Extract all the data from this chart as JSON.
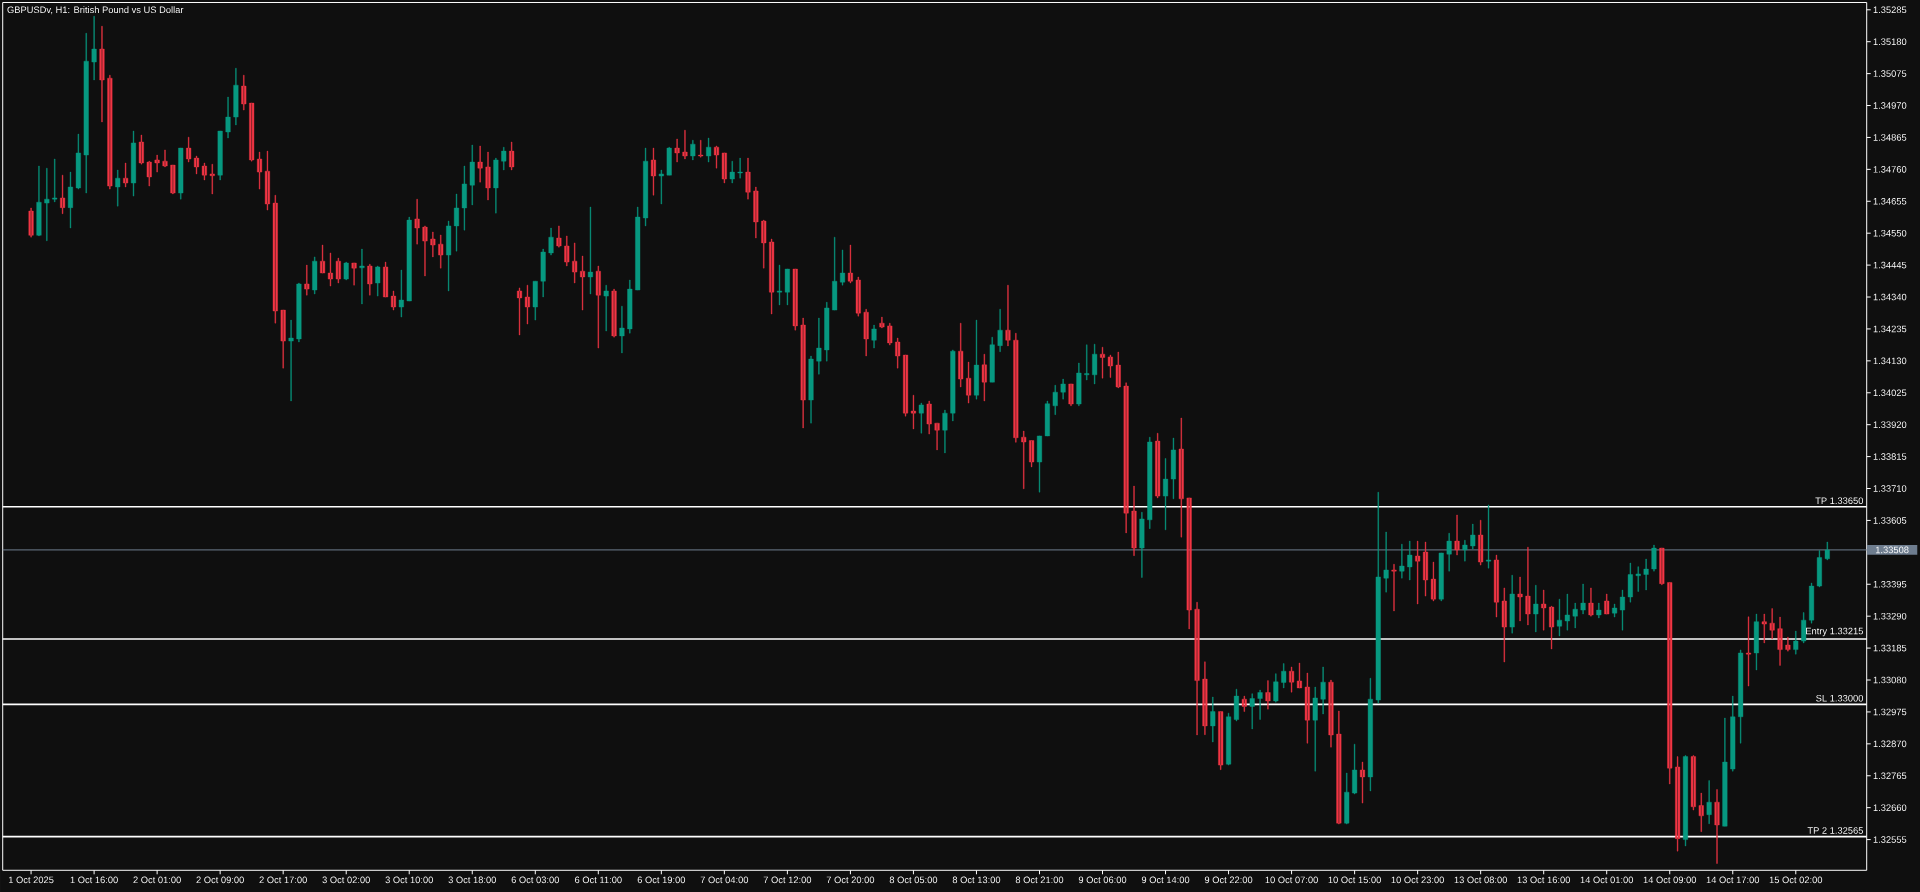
{
  "chart_data": {
    "type": "candlestick",
    "title": "GBPUSDv, H1:  British Pound vs US Dollar",
    "categories": [
      "1 Oct 2025",
      null,
      null,
      null,
      null,
      null,
      null,
      null,
      "1 Oct 16:00",
      null,
      null,
      null,
      null,
      null,
      null,
      null,
      "2 Oct 01:00",
      null,
      null,
      null,
      null,
      null,
      null,
      null,
      "2 Oct 09:00",
      null,
      null,
      null,
      null,
      null,
      null,
      null,
      "2 Oct 17:00",
      null,
      null,
      null,
      null,
      null,
      null,
      null,
      "3 Oct 02:00",
      null,
      null,
      null,
      null,
      null,
      null,
      null,
      "3 Oct 10:00",
      null,
      null,
      null,
      null,
      null,
      null,
      null,
      "3 Oct 18:00",
      null,
      null,
      null,
      null,
      null,
      null,
      null,
      "6 Oct 03:00",
      null,
      null,
      null,
      null,
      null,
      null,
      null,
      "6 Oct 11:00",
      null,
      null,
      null,
      null,
      null,
      null,
      null,
      "6 Oct 19:00",
      null,
      null,
      null,
      null,
      null,
      null,
      null,
      "7 Oct 04:00",
      null,
      null,
      null,
      null,
      null,
      null,
      null,
      "7 Oct 12:00",
      null,
      null,
      null,
      null,
      null,
      null,
      null,
      "7 Oct 20:00",
      null,
      null,
      null,
      null,
      null,
      null,
      null,
      "8 Oct 05:00",
      null,
      null,
      null,
      null,
      null,
      null,
      null,
      "8 Oct 13:00",
      null,
      null,
      null,
      null,
      null,
      null,
      null,
      "8 Oct 21:00",
      null,
      null,
      null,
      null,
      null,
      null,
      null,
      "9 Oct 06:00",
      null,
      null,
      null,
      null,
      null,
      null,
      null,
      "9 Oct 14:00",
      null,
      null,
      null,
      null,
      null,
      null,
      null,
      "9 Oct 22:00",
      null,
      null,
      null,
      null,
      null,
      null,
      null,
      "10 Oct 07:00",
      null,
      null,
      null,
      null,
      null,
      null,
      null,
      "10 Oct 15:00",
      null,
      null,
      null,
      null,
      null,
      null,
      null,
      "10 Oct 23:00",
      null,
      null,
      null,
      null,
      null,
      null,
      null,
      "13 Oct 08:00",
      null,
      null,
      null,
      null,
      null,
      null,
      null,
      "13 Oct 16:00",
      null,
      null,
      null,
      null,
      null,
      null,
      null,
      "14 Oct 01:00",
      null,
      null,
      null,
      null,
      null,
      null,
      null,
      "14 Oct 09:00",
      null,
      null,
      null,
      null,
      null,
      null,
      null,
      "14 Oct 17:00",
      null,
      null,
      null,
      null,
      null,
      null,
      null,
      "15 Oct 02:00",
      null,
      null,
      null,
      null
    ],
    "ohlc": [
      [
        1.34623,
        1.34633,
        1.34537,
        1.34543
      ],
      [
        1.34543,
        1.34771,
        1.34541,
        1.34652
      ],
      [
        1.34649,
        1.34764,
        1.34525,
        1.34662
      ],
      [
        1.34662,
        1.34794,
        1.34653,
        1.34666
      ],
      [
        1.34666,
        1.34741,
        1.34614,
        1.34634
      ],
      [
        1.34634,
        1.34751,
        1.34567,
        1.34702
      ],
      [
        1.34699,
        1.34876,
        1.34695,
        1.34814
      ],
      [
        1.34807,
        1.35208,
        1.34682,
        1.35116
      ],
      [
        1.35113,
        1.35264,
        1.35054,
        1.35156
      ],
      [
        1.35156,
        1.35231,
        1.34916,
        1.35054
      ],
      [
        1.3506,
        1.3507,
        1.34695,
        1.34705
      ],
      [
        1.34702,
        1.34758,
        1.34639,
        1.34731
      ],
      [
        1.34731,
        1.34781,
        1.34702,
        1.34715
      ],
      [
        1.34715,
        1.34886,
        1.34672,
        1.34847
      ],
      [
        1.3485,
        1.34873,
        1.34777,
        1.34781
      ],
      [
        1.34784,
        1.34787,
        1.34705,
        1.34735
      ],
      [
        1.34791,
        1.34807,
        1.34751,
        1.34781
      ],
      [
        1.34787,
        1.34824,
        1.34768,
        1.34771
      ],
      [
        1.34774,
        1.34774,
        1.34679,
        1.34682
      ],
      [
        1.34682,
        1.3483,
        1.34662,
        1.3483
      ],
      [
        1.3483,
        1.34866,
        1.34784,
        1.34794
      ],
      [
        1.34797,
        1.34804,
        1.34745,
        1.34768
      ],
      [
        1.34771,
        1.34781,
        1.34725,
        1.34741
      ],
      [
        1.34745,
        1.34777,
        1.34679,
        1.34739
      ],
      [
        1.34741,
        1.34886,
        1.34725,
        1.34886
      ],
      [
        1.34883,
        1.34998,
        1.34863,
        1.34932
      ],
      [
        1.34932,
        1.35093,
        1.34906,
        1.35037
      ],
      [
        1.35034,
        1.3507,
        1.34955,
        1.34975
      ],
      [
        1.34978,
        1.34978,
        1.34787,
        1.34791
      ],
      [
        1.34794,
        1.34817,
        1.34695,
        1.34751
      ],
      [
        1.34754,
        1.3482,
        1.34626,
        1.34646
      ],
      [
        1.34649,
        1.34675,
        1.34254,
        1.34294
      ],
      [
        1.34297,
        1.34297,
        1.34106,
        1.34195
      ],
      [
        1.34195,
        1.34264,
        1.33998,
        1.34205
      ],
      [
        1.34202,
        1.34386,
        1.34192,
        1.34383
      ],
      [
        1.34383,
        1.34445,
        1.34346,
        1.34366
      ],
      [
        1.34363,
        1.34472,
        1.3435,
        1.34458
      ],
      [
        1.34458,
        1.34511,
        1.34419,
        1.34419
      ],
      [
        1.34419,
        1.34485,
        1.34376,
        1.34399
      ],
      [
        1.34458,
        1.34468,
        1.34386,
        1.34399
      ],
      [
        1.34399,
        1.34455,
        1.34396,
        1.34452
      ],
      [
        1.34452,
        1.34452,
        1.34379,
        1.34435
      ],
      [
        1.34436,
        1.34498,
        1.34317,
        1.34442
      ],
      [
        1.34442,
        1.34448,
        1.34346,
        1.34383
      ],
      [
        1.34386,
        1.34442,
        1.34343,
        1.34439
      ],
      [
        1.34439,
        1.34455,
        1.3434,
        1.3434
      ],
      [
        1.34343,
        1.3436,
        1.34297,
        1.34307
      ],
      [
        1.34307,
        1.34429,
        1.34274,
        1.3433
      ],
      [
        1.34327,
        1.34603,
        1.34327,
        1.34593
      ],
      [
        1.34597,
        1.34662,
        1.34514,
        1.34567
      ],
      [
        1.3457,
        1.34574,
        1.34409,
        1.34524
      ],
      [
        1.34531,
        1.34554,
        1.34472,
        1.34511
      ],
      [
        1.34514,
        1.34544,
        1.34435,
        1.34478
      ],
      [
        1.34478,
        1.3459,
        1.3436,
        1.34574
      ],
      [
        1.34574,
        1.34679,
        1.34491,
        1.34633
      ],
      [
        1.34633,
        1.34771,
        1.3456,
        1.34712
      ],
      [
        1.34708,
        1.3484,
        1.34643,
        1.34784
      ],
      [
        1.34784,
        1.34837,
        1.34718,
        1.34764
      ],
      [
        1.34768,
        1.34817,
        1.34659,
        1.34699
      ],
      [
        1.34699,
        1.34797,
        1.34616,
        1.34791
      ],
      [
        1.34787,
        1.34833,
        1.34758,
        1.3482
      ],
      [
        1.3482,
        1.3485,
        1.34758,
        1.34768
      ],
      [
        1.3436,
        1.3437,
        1.34215,
        1.34337
      ],
      [
        1.3434,
        1.34379,
        1.34251,
        1.34307
      ],
      [
        1.34307,
        1.34392,
        1.34264,
        1.34392
      ],
      [
        1.34392,
        1.34498,
        1.3434,
        1.34488
      ],
      [
        1.34485,
        1.34567,
        1.34478,
        1.34537
      ],
      [
        1.34534,
        1.34574,
        1.34504,
        1.34508
      ],
      [
        1.34508,
        1.34541,
        1.34442,
        1.34455
      ],
      [
        1.34458,
        1.34518,
        1.34386,
        1.34422
      ],
      [
        1.34425,
        1.34475,
        1.34297,
        1.34406
      ],
      [
        1.34406,
        1.34636,
        1.3435,
        1.34422
      ],
      [
        1.34425,
        1.34442,
        1.34172,
        1.34346
      ],
      [
        1.34343,
        1.34379,
        1.34228,
        1.3436
      ],
      [
        1.3436,
        1.34366,
        1.34208,
        1.34212
      ],
      [
        1.34212,
        1.3431,
        1.34156,
        1.34238
      ],
      [
        1.34235,
        1.34396,
        1.34221,
        1.34366
      ],
      [
        1.34363,
        1.34636,
        1.34363,
        1.34603
      ],
      [
        1.346,
        1.3483,
        1.34574,
        1.34787
      ],
      [
        1.34791,
        1.3483,
        1.34675,
        1.34738
      ],
      [
        1.34738,
        1.34758,
        1.34646,
        1.34745
      ],
      [
        1.34741,
        1.34833,
        1.34741,
        1.3483
      ],
      [
        1.3483,
        1.3486,
        1.34784,
        1.34814
      ],
      [
        1.34817,
        1.34889,
        1.34794,
        1.34804
      ],
      [
        1.34804,
        1.34856,
        1.34791,
        1.34843
      ],
      [
        1.34807,
        1.34856,
        1.348,
        1.34804
      ],
      [
        1.34804,
        1.34863,
        1.34784,
        1.34833
      ],
      [
        1.34833,
        1.34837,
        1.34764,
        1.34807
      ],
      [
        1.34814,
        1.34814,
        1.34715,
        1.34728
      ],
      [
        1.34728,
        1.34787,
        1.34715,
        1.34751
      ],
      [
        1.34748,
        1.34797,
        1.34731,
        1.34751
      ],
      [
        1.34751,
        1.34797,
        1.34662,
        1.34685
      ],
      [
        1.34689,
        1.34702,
        1.34534,
        1.34587
      ],
      [
        1.3459,
        1.34593,
        1.34435,
        1.34518
      ],
      [
        1.34521,
        1.34531,
        1.34284,
        1.34356
      ],
      [
        1.34356,
        1.34445,
        1.34314,
        1.3436
      ],
      [
        1.34356,
        1.34432,
        1.34314,
        1.34432
      ],
      [
        1.34432,
        1.34432,
        1.34231,
        1.34245
      ],
      [
        1.34248,
        1.34271,
        1.33909,
        1.34001
      ],
      [
        1.34001,
        1.34146,
        1.33925,
        1.34136
      ],
      [
        1.34129,
        1.34271,
        1.34086,
        1.34172
      ],
      [
        1.34166,
        1.34323,
        1.34129,
        1.34304
      ],
      [
        1.34297,
        1.34537,
        1.34297,
        1.34392
      ],
      [
        1.34389,
        1.34495,
        1.34379,
        1.34419
      ],
      [
        1.34419,
        1.34511,
        1.34386,
        1.34392
      ],
      [
        1.34396,
        1.34406,
        1.34277,
        1.34287
      ],
      [
        1.3429,
        1.343,
        1.34146,
        1.34202
      ],
      [
        1.34198,
        1.34248,
        1.34172,
        1.34235
      ],
      [
        1.34254,
        1.34274,
        1.34238,
        1.34241
      ],
      [
        1.34245,
        1.34254,
        1.34182,
        1.34189
      ],
      [
        1.34192,
        1.34205,
        1.34106,
        1.34146
      ],
      [
        1.34149,
        1.34149,
        1.33948,
        1.33958
      ],
      [
        1.33965,
        1.34017,
        1.33906,
        1.33958
      ],
      [
        1.33958,
        1.33991,
        1.33892,
        1.33985
      ],
      [
        1.33988,
        1.33998,
        1.33889,
        1.33922
      ],
      [
        1.33925,
        1.33925,
        1.33837,
        1.33902
      ],
      [
        1.33902,
        1.33968,
        1.33827,
        1.33958
      ],
      [
        1.33958,
        1.34166,
        1.33932,
        1.34162
      ],
      [
        1.34162,
        1.34254,
        1.34044,
        1.3407
      ],
      [
        1.34073,
        1.34126,
        1.33991,
        1.34017
      ],
      [
        1.34017,
        1.34264,
        1.34004,
        1.34116
      ],
      [
        1.34117,
        1.34152,
        1.33998,
        1.3406
      ],
      [
        1.3406,
        1.34208,
        1.3406,
        1.34183
      ],
      [
        1.3418,
        1.343,
        1.3416,
        1.34231
      ],
      [
        1.34231,
        1.34379,
        1.34179,
        1.34198
      ],
      [
        1.34198,
        1.34221,
        1.33862,
        1.33877
      ],
      [
        1.33879,
        1.33899,
        1.33709,
        1.33863
      ],
      [
        1.33868,
        1.33868,
        1.33781,
        1.33797
      ],
      [
        1.33797,
        1.33883,
        1.33698,
        1.33883
      ],
      [
        1.33883,
        1.33998,
        1.33883,
        1.33989
      ],
      [
        1.33982,
        1.3405,
        1.33953,
        1.34027
      ],
      [
        1.34027,
        1.3407,
        1.34004,
        1.34054
      ],
      [
        1.34054,
        1.34054,
        1.33982,
        1.33988
      ],
      [
        1.33988,
        1.34123,
        1.33982,
        1.3409
      ],
      [
        1.34084,
        1.34183,
        1.34067,
        1.34088
      ],
      [
        1.34084,
        1.34185,
        1.34054,
        1.34152
      ],
      [
        1.34152,
        1.34175,
        1.34073,
        1.34141
      ],
      [
        1.34143,
        1.34149,
        1.34075,
        1.34113
      ],
      [
        1.34116,
        1.34159,
        1.34041,
        1.34044
      ],
      [
        1.34047,
        1.34058,
        1.33564,
        1.33629
      ],
      [
        1.33636,
        1.33718,
        1.33489,
        1.33514
      ],
      [
        1.33514,
        1.33632,
        1.33417,
        1.3361
      ],
      [
        1.33607,
        1.33879,
        1.33578,
        1.33863
      ],
      [
        1.33866,
        1.33892,
        1.33679,
        1.33685
      ],
      [
        1.33685,
        1.33809,
        1.33574,
        1.33741
      ],
      [
        1.33741,
        1.33876,
        1.33676,
        1.33837
      ],
      [
        1.3384,
        1.33942,
        1.3355,
        1.33676
      ],
      [
        1.33679,
        1.33679,
        1.33248,
        1.3331
      ],
      [
        1.33313,
        1.33336,
        1.32899,
        1.33078
      ],
      [
        1.33083,
        1.3314,
        1.329,
        1.32929
      ],
      [
        1.32929,
        1.33024,
        1.32876,
        1.32976
      ],
      [
        1.32976,
        1.32976,
        1.32785,
        1.328
      ],
      [
        1.32803,
        1.32971,
        1.328,
        1.32959
      ],
      [
        1.3295,
        1.3305,
        1.32945,
        1.33027
      ],
      [
        1.33017,
        1.33027,
        1.32976,
        1.32993
      ],
      [
        1.32993,
        1.33035,
        1.32919,
        1.33019
      ],
      [
        1.33019,
        1.33047,
        1.3295,
        1.33039
      ],
      [
        1.33039,
        1.33078,
        1.32984,
        1.33011
      ],
      [
        1.33011,
        1.33101,
        1.33007,
        1.33074
      ],
      [
        1.33072,
        1.33134,
        1.33054,
        1.33109
      ],
      [
        1.33109,
        1.33123,
        1.3304,
        1.33073
      ],
      [
        1.33077,
        1.33136,
        1.33054,
        1.33054
      ],
      [
        1.33057,
        1.33103,
        1.32872,
        1.32948
      ],
      [
        1.32948,
        1.33057,
        1.3278,
        1.33021
      ],
      [
        1.33017,
        1.33123,
        1.32968,
        1.33073
      ],
      [
        1.33073,
        1.3308,
        1.32859,
        1.32899
      ],
      [
        1.32902,
        1.32978,
        1.32606,
        1.32609
      ],
      [
        1.32609,
        1.32774,
        1.32606,
        1.32711
      ],
      [
        1.32708,
        1.32869,
        1.32705,
        1.32784
      ],
      [
        1.32784,
        1.3281,
        1.32675,
        1.32761
      ],
      [
        1.32761,
        1.33086,
        1.32715,
        1.33017
      ],
      [
        1.33014,
        1.33698,
        1.33004,
        1.33419
      ],
      [
        1.33415,
        1.33567,
        1.33369,
        1.33442
      ],
      [
        1.33442,
        1.33461,
        1.33307,
        1.33438
      ],
      [
        1.33438,
        1.33527,
        1.33415,
        1.33455
      ],
      [
        1.33452,
        1.33537,
        1.33409,
        1.33491
      ],
      [
        1.33488,
        1.33537,
        1.3333,
        1.33471
      ],
      [
        1.33501,
        1.33534,
        1.33356,
        1.33409
      ],
      [
        1.33412,
        1.33468,
        1.3334,
        1.33346
      ],
      [
        1.33346,
        1.33498,
        1.3334,
        1.33498
      ],
      [
        1.33494,
        1.33563,
        1.33438,
        1.33537
      ],
      [
        1.33537,
        1.33623,
        1.33491,
        1.33508
      ],
      [
        1.33508,
        1.3354,
        1.33471,
        1.33524
      ],
      [
        1.33521,
        1.33593,
        1.33511,
        1.33557
      ],
      [
        1.33557,
        1.33606,
        1.33458,
        1.33468
      ],
      [
        1.33471,
        1.33656,
        1.33448,
        1.33475
      ],
      [
        1.33475,
        1.33491,
        1.33287,
        1.33336
      ],
      [
        1.3334,
        1.33383,
        1.33139,
        1.33254
      ],
      [
        1.33254,
        1.33425,
        1.33234,
        1.33363
      ],
      [
        1.33363,
        1.33419,
        1.33274,
        1.33353
      ],
      [
        1.33356,
        1.33517,
        1.33261,
        1.33297
      ],
      [
        1.33297,
        1.33392,
        1.33238,
        1.3333
      ],
      [
        1.3333,
        1.33376,
        1.33244,
        1.33317
      ],
      [
        1.3332,
        1.33323,
        1.33182,
        1.33254
      ],
      [
        1.33257,
        1.33346,
        1.33225,
        1.33277
      ],
      [
        1.33274,
        1.33363,
        1.33244,
        1.33294
      ],
      [
        1.3329,
        1.33333,
        1.33251,
        1.33313
      ],
      [
        1.3331,
        1.33396,
        1.33297,
        1.33333
      ],
      [
        1.33333,
        1.33383,
        1.3329,
        1.33294
      ],
      [
        1.33294,
        1.33333,
        1.33284,
        1.3331
      ],
      [
        1.3334,
        1.33363,
        1.33297,
        1.33297
      ],
      [
        1.333,
        1.3333,
        1.33287,
        1.33317
      ],
      [
        1.3331,
        1.33376,
        1.33244,
        1.33353
      ],
      [
        1.33353,
        1.33465,
        1.33336,
        1.33427
      ],
      [
        1.33423,
        1.33453,
        1.33371,
        1.33429
      ],
      [
        1.33427,
        1.33478,
        1.33376,
        1.33445
      ],
      [
        1.33445,
        1.33524,
        1.33438,
        1.33514
      ],
      [
        1.33514,
        1.33514,
        1.33393,
        1.33397
      ],
      [
        1.33401,
        1.33401,
        1.32738,
        1.3279
      ],
      [
        1.32794,
        1.32828,
        1.32517,
        1.32558
      ],
      [
        1.32555,
        1.32832,
        1.32534,
        1.32828
      ],
      [
        1.32828,
        1.32832,
        1.32652,
        1.32663
      ],
      [
        1.32667,
        1.32708,
        1.32581,
        1.32633
      ],
      [
        1.32637,
        1.32749,
        1.32607,
        1.32678
      ],
      [
        1.32678,
        1.3272,
        1.32476,
        1.32603
      ],
      [
        1.32599,
        1.32955,
        1.32599,
        1.3281
      ],
      [
        1.32787,
        1.33027,
        1.3278,
        1.32959
      ],
      [
        1.32959,
        1.33179,
        1.32872,
        1.33169
      ],
      [
        1.33169,
        1.33288,
        1.3306,
        1.33165
      ],
      [
        1.33169,
        1.33297,
        1.33113,
        1.33272
      ],
      [
        1.33272,
        1.33297,
        1.33202,
        1.33264
      ],
      [
        1.33267,
        1.33315,
        1.33215,
        1.33244
      ],
      [
        1.33249,
        1.33287,
        1.33128,
        1.3318
      ],
      [
        1.33195,
        1.33221,
        1.33175,
        1.3318
      ],
      [
        1.3318,
        1.33241,
        1.33165,
        1.33208
      ],
      [
        1.33208,
        1.33302,
        1.33202,
        1.33277
      ],
      [
        1.33277,
        1.33399,
        1.33267,
        1.33389
      ],
      [
        1.33389,
        1.33506,
        1.33386,
        1.33483
      ],
      [
        1.33479,
        1.33534,
        1.33475,
        1.33508
      ]
    ],
    "colors": [
      "#F23645",
      "#089981",
      "#089981",
      "#089981",
      "#F23645",
      "#089981",
      "#089981",
      "#089981",
      "#089981",
      "#F23645",
      "#F23645",
      "#089981",
      "#F23645",
      "#089981",
      "#F23645",
      "#F23645",
      "#F23645",
      "#F23645",
      "#F23645",
      "#089981",
      "#F23645",
      "#F23645",
      "#F23645",
      "#F23645",
      "#089981",
      "#089981",
      "#089981",
      "#F23645",
      "#F23645",
      "#F23645",
      "#F23645",
      "#F23645",
      "#F23645",
      "#089981",
      "#089981",
      "#F23645",
      "#089981",
      "#F23645",
      "#F23645",
      "#F23645",
      "#089981",
      "#F23645",
      "#089981",
      "#F23645",
      "#089981",
      "#F23645",
      "#F23645",
      "#089981",
      "#089981",
      "#F23645",
      "#F23645",
      "#F23645",
      "#F23645",
      "#089981",
      "#089981",
      "#089981",
      "#089981",
      "#F23645",
      "#F23645",
      "#089981",
      "#089981",
      "#F23645",
      "#F23645",
      "#F23645",
      "#089981",
      "#089981",
      "#089981",
      "#F23645",
      "#F23645",
      "#F23645",
      "#F23645",
      "#089981",
      "#F23645",
      "#089981",
      "#F23645",
      "#089981",
      "#089981",
      "#089981",
      "#089981",
      "#F23645",
      "#089981",
      "#089981",
      "#F23645",
      "#F23645",
      "#089981",
      "#F23645",
      "#089981",
      "#F23645",
      "#F23645",
      "#089981",
      "#089981",
      "#F23645",
      "#F23645",
      "#F23645",
      "#F23645",
      "#089981",
      "#089981",
      "#F23645",
      "#F23645",
      "#089981",
      "#089981",
      "#089981",
      "#089981",
      "#089981",
      "#F23645",
      "#F23645",
      "#F23645",
      "#089981",
      "#F23645",
      "#F23645",
      "#F23645",
      "#F23645",
      "#F23645",
      "#089981",
      "#F23645",
      "#F23645",
      "#089981",
      "#089981",
      "#F23645",
      "#F23645",
      "#089981",
      "#F23645",
      "#089981",
      "#089981",
      "#F23645",
      "#F23645",
      "#F23645",
      "#F23645",
      "#089981",
      "#089981",
      "#089981",
      "#089981",
      "#F23645",
      "#089981",
      "#089981",
      "#089981",
      "#F23645",
      "#F23645",
      "#F23645",
      "#F23645",
      "#F23645",
      "#089981",
      "#089981",
      "#F23645",
      "#089981",
      "#089981",
      "#F23645",
      "#F23645",
      "#F23645",
      "#F23645",
      "#089981",
      "#F23645",
      "#089981",
      "#089981",
      "#F23645",
      "#089981",
      "#089981",
      "#F23645",
      "#089981",
      "#089981",
      "#F23645",
      "#F23645",
      "#F23645",
      "#089981",
      "#089981",
      "#F23645",
      "#F23645",
      "#089981",
      "#089981",
      "#F23645",
      "#089981",
      "#089981",
      "#089981",
      "#F23645",
      "#089981",
      "#089981",
      "#F23645",
      "#F23645",
      "#F23645",
      "#089981",
      "#089981",
      "#F23645",
      "#089981",
      "#089981",
      "#F23645",
      "#089981",
      "#F23645",
      "#F23645",
      "#089981",
      "#F23645",
      "#F23645",
      "#089981",
      "#F23645",
      "#F23645",
      "#089981",
      "#089981",
      "#089981",
      "#089981",
      "#F23645",
      "#089981",
      "#F23645",
      "#089981",
      "#089981",
      "#089981",
      "#089981",
      "#089981",
      "#089981",
      "#F23645",
      "#F23645",
      "#F23645",
      "#089981",
      "#F23645",
      "#F23645",
      "#089981",
      "#F23645",
      "#089981",
      "#089981",
      "#089981",
      "#F23645",
      "#089981",
      "#F23645",
      "#F23645",
      "#F23645",
      "#F23645",
      "#089981",
      "#089981",
      "#089981",
      "#089981",
      "#089981"
    ],
    "ylim": [
      1.32454,
      1.35309
    ],
    "yticks": [
      1.32555,
      {
        "value": 1.3266,
        "label": "1.32660"
      },
      1.32765,
      {
        "value": 1.3287,
        "label": "1.32870"
      },
      1.32975,
      {
        "value": 1.3308,
        "label": "1.33080"
      },
      1.33185,
      {
        "value": 1.3329,
        "label": "1.33290"
      },
      1.33395,
      1.33605,
      {
        "value": 1.3371,
        "label": "1.33710"
      },
      1.33815,
      {
        "value": 1.3392,
        "label": "1.33920"
      },
      1.34025,
      {
        "value": 1.3413,
        "label": "1.34130"
      },
      1.34235,
      {
        "value": 1.3434,
        "label": "1.34340"
      },
      1.34445,
      {
        "value": 1.3455,
        "label": "1.34550"
      },
      1.34655,
      {
        "value": 1.3476,
        "label": "1.34760"
      },
      1.34865,
      {
        "value": 1.3497,
        "label": "1.34970"
      },
      1.35075,
      {
        "value": 1.3518,
        "label": "1.35180"
      },
      1.35285
    ],
    "ref_lines": [
      {
        "axis": "y",
        "value": 1.3365,
        "label": "TP 1.33650",
        "color": "#FFFFFF"
      },
      {
        "axis": "y",
        "value": 1.33508,
        "color": "#6E7D8F"
      },
      {
        "axis": "y",
        "value": 1.33215,
        "label": "Entry 1.33215",
        "color": "#FFFFFF"
      },
      {
        "axis": "y",
        "value": 1.33,
        "label": "SL 1.33000",
        "color": "#FFFFFF"
      },
      {
        "axis": "y",
        "value": 1.32565,
        "label": "TP 2 1.32565",
        "color": "#FFFFFF"
      }
    ],
    "annotations": [
      "1.33508"
    ]
  }
}
